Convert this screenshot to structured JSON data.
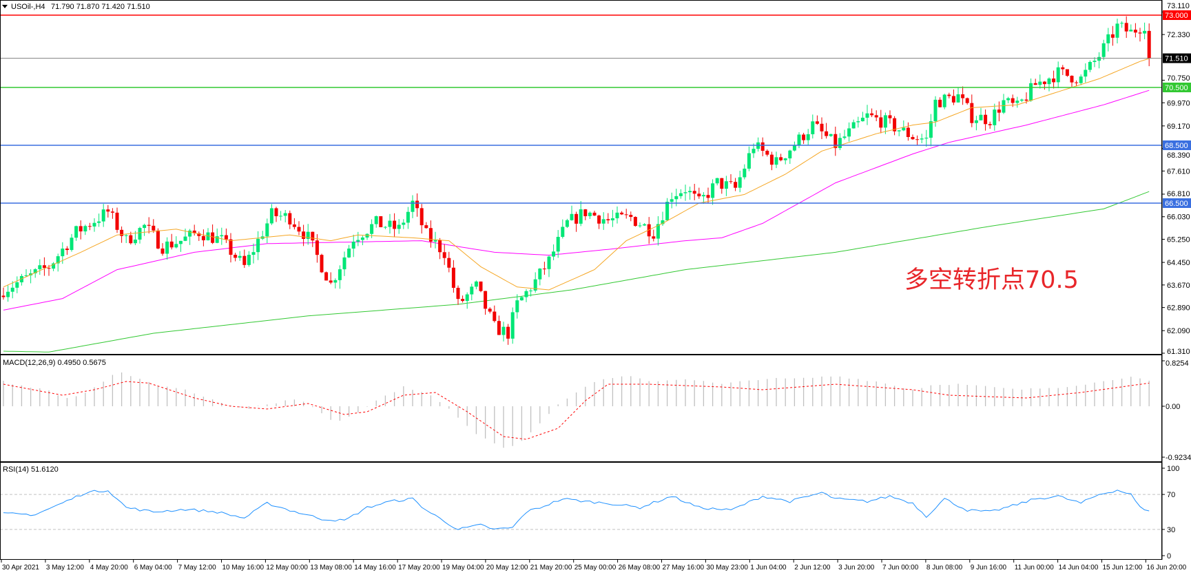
{
  "header": {
    "symbol": "USOil-,H4",
    "ohlc": "71.790 71.870 71.420 71.510"
  },
  "annotation": "多空转折点70.5",
  "colors": {
    "bull": "#00e676",
    "bear": "#f20000",
    "ma_fast": "#f5a623",
    "ma_mid": "#ff00ff",
    "ma_slow": "#32c832",
    "rsi": "#1e90ff",
    "macd_hist": "#c0c0c0",
    "macd_signal": "#ff0000"
  },
  "chart_data": [
    {
      "type": "candlestick",
      "panel": "main",
      "ylim": [
        61.31,
        73.5
      ],
      "y_ticks": [
        "73.110",
        "72.330",
        "70.750",
        "69.970",
        "69.170",
        "68.390",
        "67.610",
        "66.810",
        "66.030",
        "65.250",
        "64.450",
        "63.670",
        "62.890",
        "62.090",
        "61.310"
      ],
      "y_tick_values": [
        73.11,
        72.33,
        70.75,
        69.97,
        69.17,
        68.39,
        67.61,
        66.81,
        66.03,
        65.25,
        64.45,
        63.67,
        62.89,
        62.09,
        61.31
      ],
      "bars": 253,
      "close_anchors": [
        [
          0,
          63.5
        ],
        [
          10,
          64.3
        ],
        [
          16,
          65.5
        ],
        [
          23,
          66.2
        ],
        [
          27,
          65.2
        ],
        [
          31,
          65.7
        ],
        [
          35,
          65.0
        ],
        [
          39,
          65.2
        ],
        [
          43,
          65.5
        ],
        [
          48,
          65.2
        ],
        [
          53,
          64.3
        ],
        [
          59,
          66.1
        ],
        [
          63,
          66.0
        ],
        [
          67,
          65.3
        ],
        [
          72,
          63.7
        ],
        [
          77,
          65.3
        ],
        [
          82,
          65.8
        ],
        [
          87,
          65.6
        ],
        [
          90,
          66.5
        ],
        [
          93,
          65.4
        ],
        [
          97,
          64.8
        ],
        [
          100,
          63.0
        ],
        [
          104,
          63.6
        ],
        [
          108,
          62.2
        ],
        [
          111,
          62.0
        ],
        [
          113,
          63.0
        ],
        [
          117,
          63.8
        ],
        [
          120,
          64.5
        ],
        [
          124,
          65.8
        ],
        [
          128,
          66.2
        ],
        [
          133,
          65.9
        ],
        [
          138,
          66.0
        ],
        [
          143,
          65.5
        ],
        [
          147,
          66.8
        ],
        [
          150,
          67.0
        ],
        [
          153,
          66.5
        ],
        [
          157,
          67.2
        ],
        [
          161,
          67.0
        ],
        [
          165,
          68.5
        ],
        [
          170,
          67.9
        ],
        [
          175,
          68.7
        ],
        [
          178,
          69.2
        ],
        [
          183,
          68.5
        ],
        [
          190,
          69.5
        ],
        [
          194,
          69.3
        ],
        [
          200,
          68.8
        ],
        [
          203,
          68.7
        ],
        [
          205,
          70.0
        ],
        [
          210,
          70.2
        ],
        [
          213,
          69.5
        ],
        [
          217,
          69.4
        ],
        [
          220,
          70.0
        ],
        [
          223,
          69.8
        ],
        [
          227,
          70.6
        ],
        [
          232,
          71.0
        ],
        [
          237,
          70.8
        ],
        [
          241,
          71.6
        ],
        [
          245,
          72.6
        ],
        [
          248,
          72.4
        ],
        [
          251,
          72.7
        ],
        [
          252,
          71.51
        ]
      ],
      "ma_fast": [
        [
          0,
          63.6
        ],
        [
          17,
          64.8
        ],
        [
          25,
          65.4
        ],
        [
          38,
          65.6
        ],
        [
          50,
          65.2
        ],
        [
          63,
          65.4
        ],
        [
          72,
          65.2
        ],
        [
          78,
          65.4
        ],
        [
          90,
          65.3
        ],
        [
          98,
          65.2
        ],
        [
          105,
          64.3
        ],
        [
          113,
          63.6
        ],
        [
          120,
          63.5
        ],
        [
          130,
          64.2
        ],
        [
          137,
          65.2
        ],
        [
          145,
          65.8
        ],
        [
          153,
          66.5
        ],
        [
          163,
          66.8
        ],
        [
          172,
          67.5
        ],
        [
          180,
          68.3
        ],
        [
          192,
          68.9
        ],
        [
          200,
          69.2
        ],
        [
          205,
          69.3
        ],
        [
          213,
          69.8
        ],
        [
          223,
          69.9
        ],
        [
          233,
          70.4
        ],
        [
          241,
          70.8
        ],
        [
          250,
          71.4
        ],
        [
          252,
          71.5
        ]
      ],
      "ma_mid": [
        [
          0,
          62.8
        ],
        [
          13,
          63.2
        ],
        [
          25,
          64.2
        ],
        [
          42,
          64.8
        ],
        [
          58,
          65.1
        ],
        [
          92,
          65.2
        ],
        [
          108,
          64.8
        ],
        [
          120,
          64.7
        ],
        [
          133,
          64.9
        ],
        [
          150,
          65.2
        ],
        [
          158,
          65.3
        ],
        [
          167,
          65.8
        ],
        [
          175,
          66.5
        ],
        [
          183,
          67.2
        ],
        [
          200,
          68.2
        ],
        [
          208,
          68.6
        ],
        [
          225,
          69.2
        ],
        [
          242,
          69.9
        ],
        [
          252,
          70.4
        ]
      ],
      "ma_slow": [
        [
          0,
          61.38
        ],
        [
          10,
          61.35
        ],
        [
          33,
          62.0
        ],
        [
          67,
          62.6
        ],
        [
          100,
          63.0
        ],
        [
          125,
          63.5
        ],
        [
          150,
          64.2
        ],
        [
          183,
          64.8
        ],
        [
          217,
          65.7
        ],
        [
          242,
          66.3
        ],
        [
          252,
          66.9
        ]
      ],
      "levels": [
        {
          "value": 73.0,
          "label": "73.000",
          "color": "#ff0000"
        },
        {
          "value": 71.51,
          "label": "71.510",
          "color": "#808080",
          "label_bg": "#000000"
        },
        {
          "value": 70.5,
          "label": "70.500",
          "color": "#32c832"
        },
        {
          "value": 68.5,
          "label": "68.500",
          "color": "#3a6fe0"
        },
        {
          "value": 66.5,
          "label": "66.500",
          "color": "#3a6fe0"
        }
      ]
    },
    {
      "type": "bar+line",
      "panel": "macd",
      "label": "MACD(12,26,9) 0.4950 0.5675",
      "ylim": [
        -0.9234,
        0.8254
      ],
      "y_ticks": [
        "0.8254",
        "0.00",
        "-0.9234"
      ],
      "y_tick_values": [
        0.8254,
        0,
        -0.9234
      ],
      "histogram": [
        [
          0,
          0.45
        ],
        [
          5,
          0.35
        ],
        [
          10,
          0.3
        ],
        [
          13,
          0.15
        ],
        [
          17,
          0.2
        ],
        [
          22,
          0.45
        ],
        [
          25,
          0.65
        ],
        [
          28,
          0.55
        ],
        [
          33,
          0.4
        ],
        [
          40,
          0.3
        ],
        [
          47,
          0.1
        ],
        [
          53,
          -0.05
        ],
        [
          60,
          0.05
        ],
        [
          63,
          0.15
        ],
        [
          67,
          0.05
        ],
        [
          73,
          -0.3
        ],
        [
          78,
          -0.1
        ],
        [
          83,
          0.15
        ],
        [
          88,
          0.35
        ],
        [
          93,
          0.25
        ],
        [
          98,
          -0.05
        ],
        [
          103,
          -0.45
        ],
        [
          110,
          -0.75
        ],
        [
          113,
          -0.7
        ],
        [
          118,
          -0.3
        ],
        [
          123,
          0.1
        ],
        [
          130,
          0.45
        ],
        [
          137,
          0.55
        ],
        [
          143,
          0.45
        ],
        [
          150,
          0.5
        ],
        [
          158,
          0.4
        ],
        [
          167,
          0.5
        ],
        [
          175,
          0.5
        ],
        [
          183,
          0.55
        ],
        [
          192,
          0.45
        ],
        [
          200,
          0.3
        ],
        [
          205,
          0.4
        ],
        [
          210,
          0.4
        ],
        [
          217,
          0.35
        ],
        [
          223,
          0.3
        ],
        [
          233,
          0.35
        ],
        [
          242,
          0.45
        ],
        [
          248,
          0.55
        ],
        [
          252,
          0.45
        ]
      ],
      "signal": [
        [
          0,
          0.4
        ],
        [
          13,
          0.2
        ],
        [
          20,
          0.3
        ],
        [
          27,
          0.45
        ],
        [
          32,
          0.42
        ],
        [
          42,
          0.15
        ],
        [
          50,
          0.0
        ],
        [
          58,
          -0.05
        ],
        [
          67,
          0.05
        ],
        [
          75,
          -0.15
        ],
        [
          80,
          -0.1
        ],
        [
          88,
          0.2
        ],
        [
          95,
          0.25
        ],
        [
          102,
          -0.1
        ],
        [
          110,
          -0.55
        ],
        [
          115,
          -0.6
        ],
        [
          122,
          -0.4
        ],
        [
          128,
          0.1
        ],
        [
          133,
          0.4
        ],
        [
          142,
          0.4
        ],
        [
          158,
          0.35
        ],
        [
          167,
          0.3
        ],
        [
          183,
          0.4
        ],
        [
          200,
          0.3
        ],
        [
          208,
          0.2
        ],
        [
          225,
          0.15
        ],
        [
          237,
          0.25
        ],
        [
          252,
          0.42
        ]
      ]
    },
    {
      "type": "line",
      "panel": "rsi",
      "label": "RSI(14) 51.6120",
      "ylim": [
        0,
        100
      ],
      "y_ticks": [
        "100",
        "70",
        "30",
        "0"
      ],
      "y_tick_values": [
        100,
        70,
        30,
        0
      ],
      "levels": [
        70,
        30
      ],
      "values": [
        [
          0,
          48
        ],
        [
          7,
          47
        ],
        [
          12,
          58
        ],
        [
          18,
          72
        ],
        [
          23,
          75
        ],
        [
          27,
          55
        ],
        [
          33,
          50
        ],
        [
          40,
          53
        ],
        [
          47,
          50
        ],
        [
          53,
          43
        ],
        [
          58,
          60
        ],
        [
          63,
          52
        ],
        [
          70,
          42
        ],
        [
          75,
          40
        ],
        [
          80,
          55
        ],
        [
          85,
          62
        ],
        [
          90,
          65
        ],
        [
          93,
          52
        ],
        [
          100,
          30
        ],
        [
          105,
          35
        ],
        [
          108,
          30
        ],
        [
          112,
          32
        ],
        [
          115,
          50
        ],
        [
          118,
          55
        ],
        [
          123,
          65
        ],
        [
          128,
          62
        ],
        [
          133,
          60
        ],
        [
          140,
          55
        ],
        [
          147,
          68
        ],
        [
          153,
          55
        ],
        [
          160,
          52
        ],
        [
          167,
          68
        ],
        [
          173,
          62
        ],
        [
          180,
          72
        ],
        [
          183,
          65
        ],
        [
          190,
          62
        ],
        [
          195,
          68
        ],
        [
          200,
          60
        ],
        [
          203,
          45
        ],
        [
          207,
          65
        ],
        [
          212,
          52
        ],
        [
          217,
          50
        ],
        [
          222,
          57
        ],
        [
          227,
          65
        ],
        [
          232,
          68
        ],
        [
          237,
          60
        ],
        [
          241,
          70
        ],
        [
          245,
          75
        ],
        [
          248,
          70
        ],
        [
          250,
          55
        ],
        [
          252,
          52
        ]
      ]
    }
  ],
  "x_ticks": [
    "30 Apr 2021",
    "3 May 12:00",
    "4 May 20:00",
    "6 May 04:00",
    "7 May 12:00",
    "10 May 16:00",
    "12 May 00:00",
    "13 May 08:00",
    "14 May 16:00",
    "17 May 20:00",
    "19 May 04:00",
    "20 May 12:00",
    "21 May 20:00",
    "25 May 00:00",
    "26 May 08:00",
    "27 May 16:00",
    "30 May 23:00",
    "1 Jun 04:00",
    "2 Jun 12:00",
    "3 Jun 20:00",
    "7 Jun 00:00",
    "8 Jun 08:00",
    "9 Jun 16:00",
    "11 Jun 00:00",
    "14 Jun 04:00",
    "15 Jun 12:00",
    "16 Jun 20:00"
  ]
}
